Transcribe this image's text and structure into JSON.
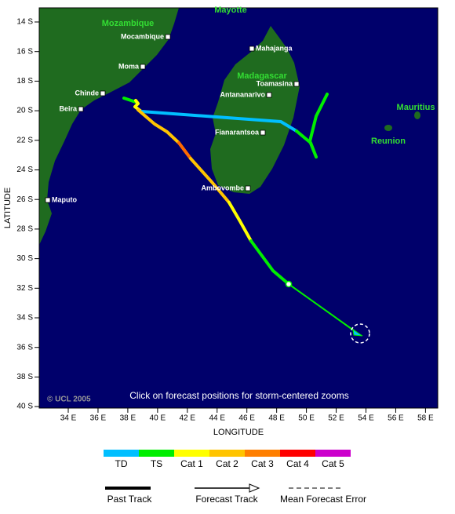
{
  "regions": [
    "Mozambique",
    "Madagascar",
    "Mayotte",
    "Mauritius",
    "Reunion"
  ],
  "cities": [
    "Mocambique",
    "Moma",
    "Chinde",
    "Beira",
    "Maputo",
    "Mahajanga",
    "Toamasina",
    "Antananarivo",
    "Fianarantsoa",
    "Ambovombe"
  ],
  "lat_ticks": [
    "14 S",
    "16 S",
    "18 S",
    "20 S",
    "22 S",
    "24 S",
    "26 S",
    "28 S",
    "30 S",
    "32 S",
    "34 S",
    "36 S",
    "38 S",
    "40 S"
  ],
  "lon_ticks": [
    "34 E",
    "36 E",
    "38 E",
    "40 E",
    "42 E",
    "44 E",
    "46 E",
    "48 E",
    "50 E",
    "52 E",
    "54 E",
    "56 E",
    "58 E"
  ],
  "axis_labels": {
    "x": "LONGITUDE",
    "y": "LATITUDE"
  },
  "copyright": "© UCL 2005",
  "note": "Click on forecast positions for storm-centered zooms",
  "intensity_legend": [
    "TD",
    "TS",
    "Cat 1",
    "Cat 2",
    "Cat 3",
    "Cat 4",
    "Cat 5"
  ],
  "track_legend": [
    "Past Track",
    "Forecast Track",
    "Mean Forecast Error"
  ]
}
